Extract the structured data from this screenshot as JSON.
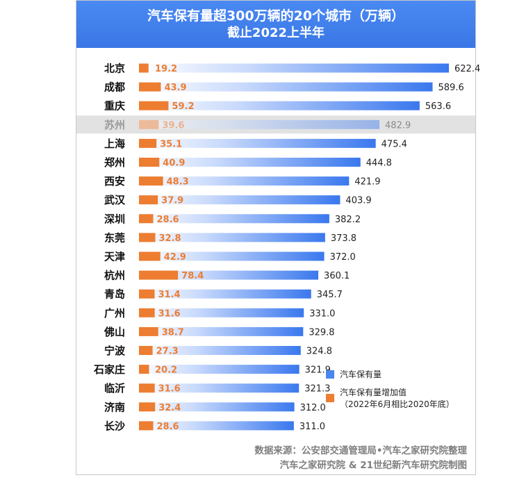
{
  "header": {
    "title": "汽车保有量超300万辆的20个城市（万辆）",
    "subtitle": "截止2022上半年"
  },
  "legend": {
    "total_label": "汽车保有量",
    "growth_label_line1": "汽车保有量增加值",
    "growth_label_line2": "（2022年6月相比2020年底）"
  },
  "source": {
    "line1": "数据来源：公安部交通管理局•汽车之家研究院整理",
    "line2": "汽车之家研究院 & 21世纪新汽车研究院制图"
  },
  "colors": {
    "header_bg": "#3f7fe9",
    "total_bar": "#4a86f0",
    "growth_bar": "#ed7d31",
    "growth_text": "#ed7d31",
    "highlight_row": "#e2e2e2"
  },
  "chart_data": {
    "type": "bar",
    "orientation": "horizontal",
    "title": "汽车保有量超300万辆的20个城市（万辆）",
    "subtitle": "截止2022上半年",
    "categories": [
      "北京",
      "成都",
      "重庆",
      "苏州",
      "上海",
      "郑州",
      "西安",
      "武汉",
      "深圳",
      "东莞",
      "天津",
      "杭州",
      "青岛",
      "广州",
      "佛山",
      "宁波",
      "石家庄",
      "临沂",
      "济南",
      "长沙"
    ],
    "series": [
      {
        "name": "汽车保有量",
        "values": [
          622.4,
          589.6,
          563.6,
          482.9,
          475.4,
          444.8,
          421.9,
          403.9,
          382.2,
          373.8,
          372.0,
          360.1,
          345.7,
          331.0,
          329.8,
          324.8,
          321.9,
          321.3,
          312.0,
          311.0
        ]
      },
      {
        "name": "汽车保有量增加值",
        "values": [
          19.2,
          43.9,
          59.2,
          39.6,
          35.1,
          40.9,
          48.3,
          37.9,
          28.6,
          32.8,
          42.9,
          78.4,
          31.4,
          31.6,
          38.7,
          27.3,
          20.2,
          31.6,
          32.4,
          28.6
        ]
      }
    ],
    "highlighted_category": "苏州",
    "legend_position": "bottom-right",
    "grid": false
  }
}
